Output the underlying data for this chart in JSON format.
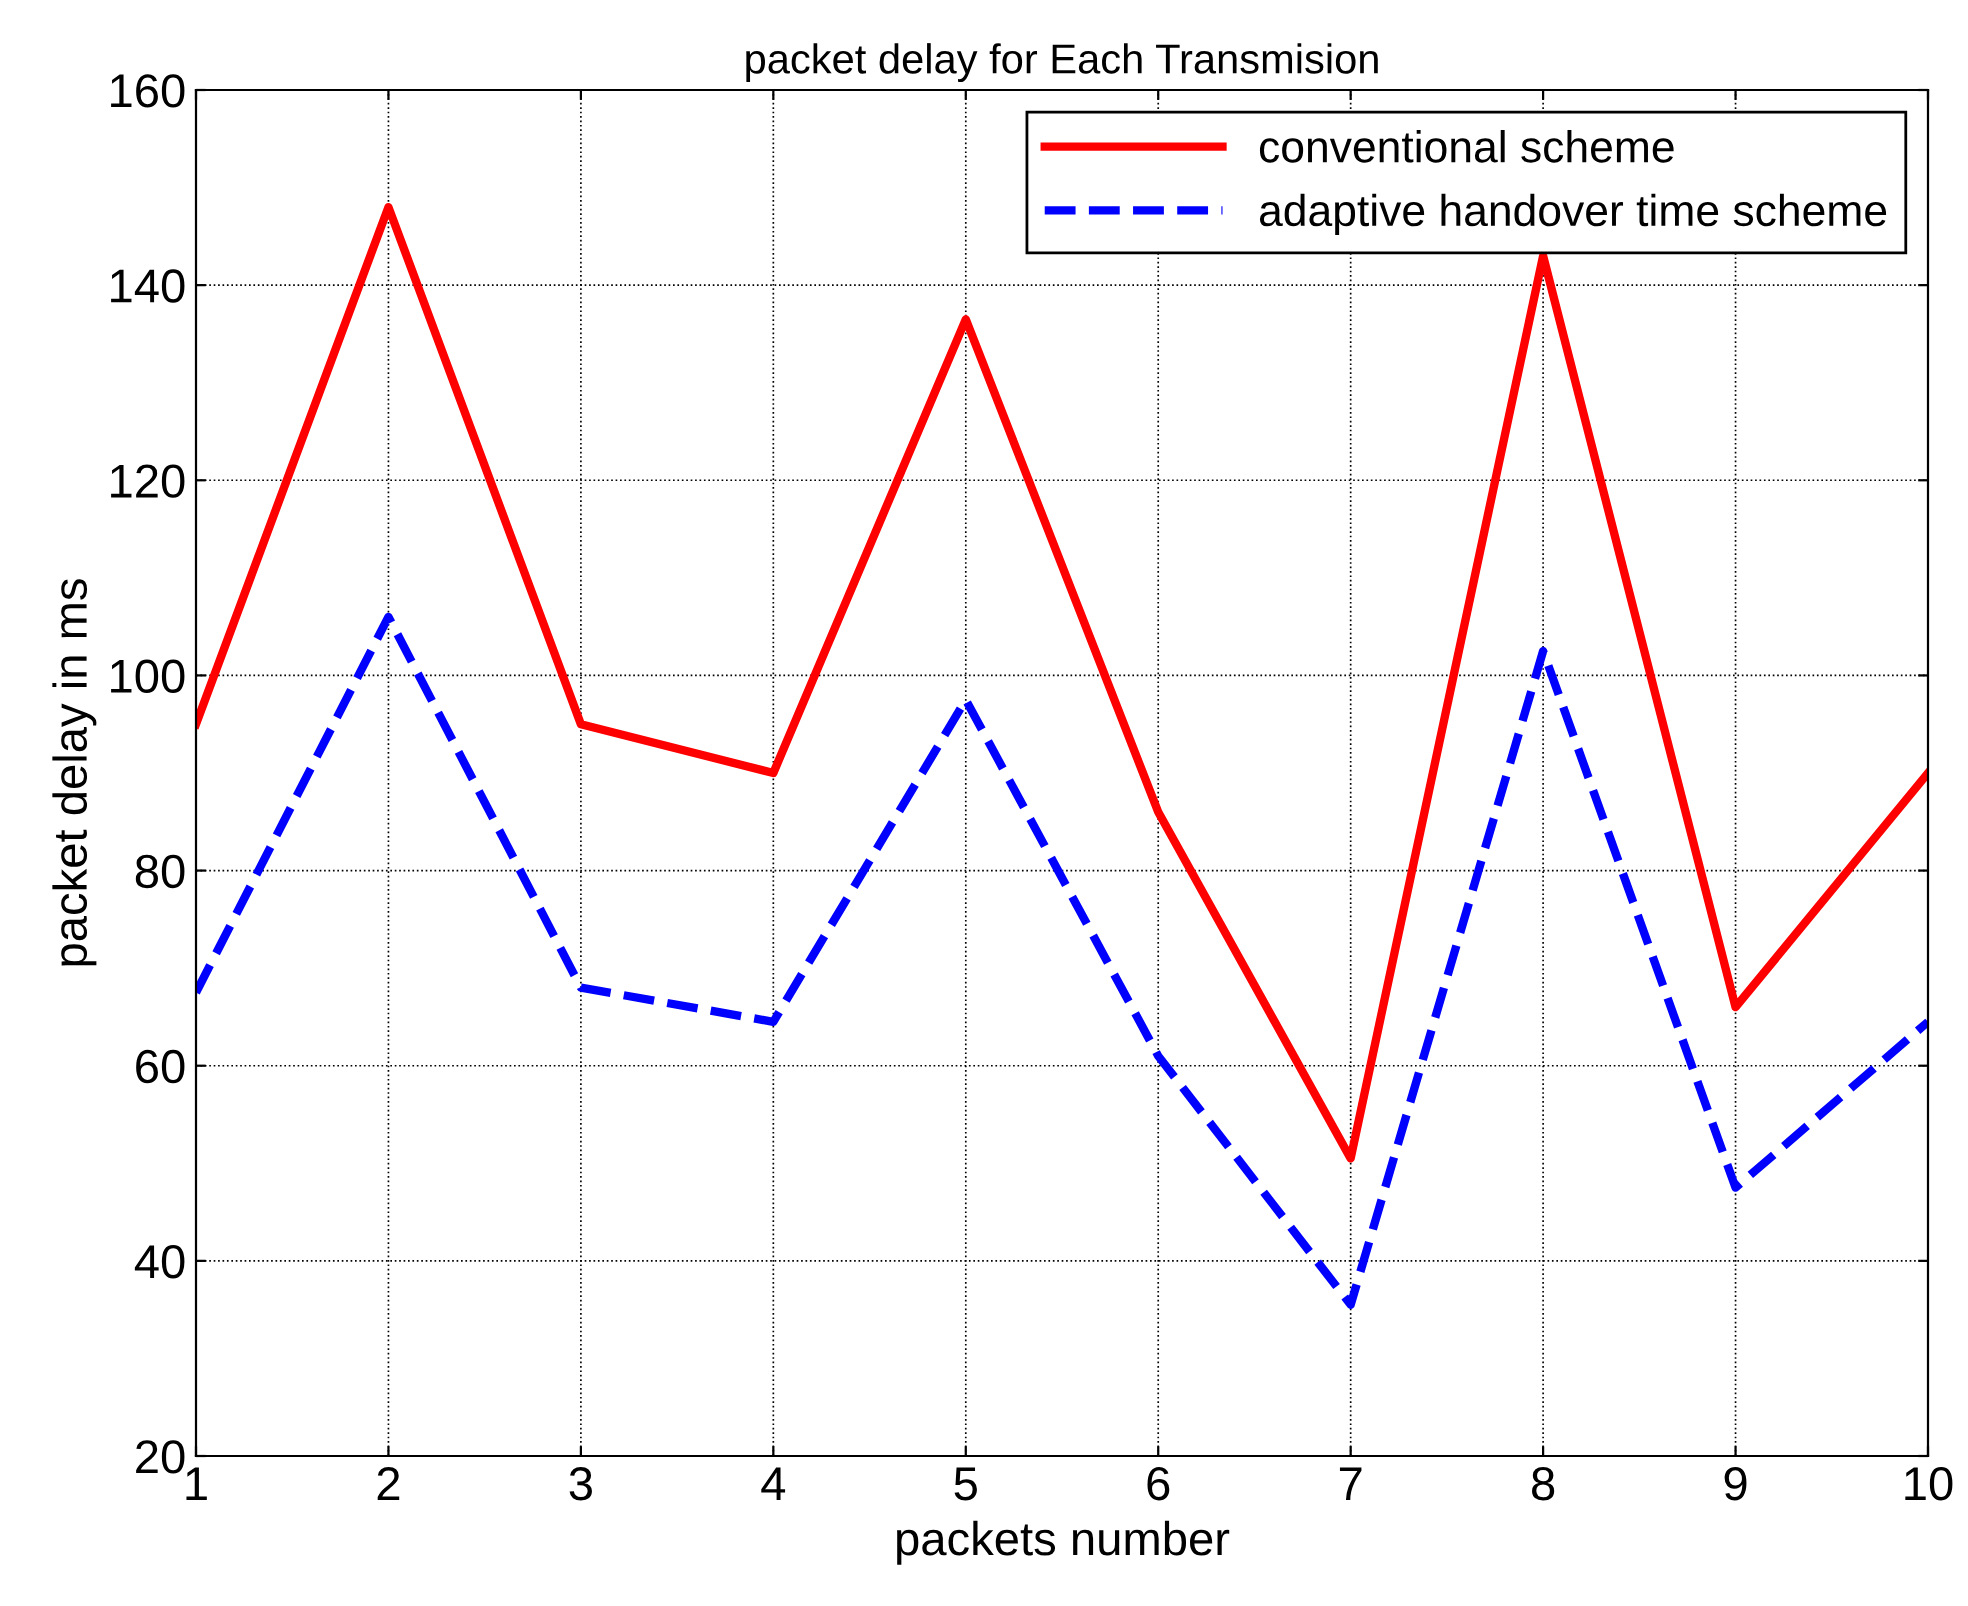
{
  "chart_data": {
    "type": "line",
    "title": "packet delay for Each Transmision",
    "xlabel": "packets number",
    "ylabel": "packet delay in ms",
    "x": [
      1,
      2,
      3,
      4,
      5,
      6,
      7,
      8,
      9,
      10
    ],
    "series": [
      {
        "name": "conventional scheme",
        "color": "#ff0000",
        "line_style": "solid",
        "values": [
          95,
          148,
          95,
          90,
          136.5,
          86,
          50.5,
          143,
          66,
          90
        ]
      },
      {
        "name": "adaptive handover time scheme",
        "color": "#0000ff",
        "line_style": "dashed",
        "values": [
          67.5,
          106,
          68,
          64.5,
          97.5,
          61,
          35.5,
          102.5,
          47.5,
          64.5
        ]
      }
    ],
    "xlim": [
      1,
      10
    ],
    "xticks": [
      1,
      2,
      3,
      4,
      5,
      6,
      7,
      8,
      9,
      10
    ],
    "ylim": [
      20,
      160
    ],
    "yticks": [
      20,
      40,
      60,
      80,
      100,
      120,
      140,
      160
    ],
    "grid": true,
    "legend": "top right",
    "marker": "none"
  }
}
